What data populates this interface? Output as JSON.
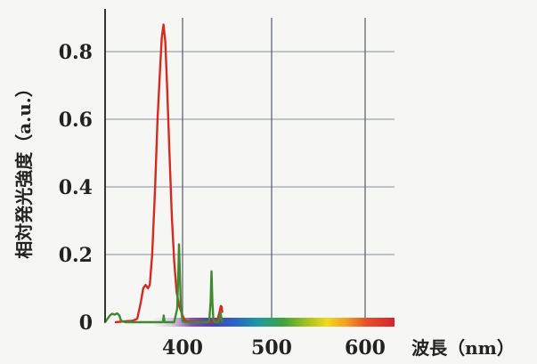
{
  "chart_data": {
    "type": "line",
    "xlabel": "波長（nm）",
    "ylabel": "相対発光強度（a.u.）",
    "xlim": [
      335,
      445
    ],
    "ylim": [
      0,
      0.9
    ],
    "grid": true,
    "x_ticks": [
      400,
      500,
      600
    ],
    "x_tick_labels": [
      "400",
      "500",
      "600"
    ],
    "y_ticks": [
      0,
      0.2,
      0.4,
      0.6,
      0.8
    ],
    "y_tick_labels": [
      "0",
      "0.2",
      "0.4",
      "0.6",
      "0.8"
    ],
    "spectrum_bar": true,
    "series": [
      {
        "color": "#d42a1f",
        "points": [
          [
            344,
            0.0
          ],
          [
            352,
            0.003
          ],
          [
            358,
            0.004
          ],
          [
            362,
            0.01
          ],
          [
            365,
            0.06
          ],
          [
            367,
            0.1
          ],
          [
            369,
            0.11
          ],
          [
            371,
            0.1
          ],
          [
            372.5,
            0.11
          ],
          [
            374.5,
            0.2
          ],
          [
            377,
            0.4
          ],
          [
            379,
            0.6
          ],
          [
            381,
            0.74
          ],
          [
            382.5,
            0.84
          ],
          [
            384,
            0.88
          ],
          [
            385.5,
            0.83
          ],
          [
            387,
            0.7
          ],
          [
            389,
            0.5
          ],
          [
            391,
            0.31
          ],
          [
            393,
            0.18
          ],
          [
            395,
            0.09
          ],
          [
            397,
            0.05
          ],
          [
            400,
            0.02
          ],
          [
            402,
            0.008
          ],
          [
            405,
            0.002
          ],
          [
            430,
            0.0
          ],
          [
            437,
            0.003
          ],
          [
            439.5,
            0.01
          ],
          [
            441.5,
            0.03
          ],
          [
            443,
            0.048
          ],
          [
            444,
            0.045
          ],
          [
            444.5,
            0.03
          ]
        ]
      },
      {
        "color": "#3f8a2f",
        "points": [
          [
            335,
            0.0
          ],
          [
            337,
            0.01
          ],
          [
            339,
            0.02
          ],
          [
            341,
            0.025
          ],
          [
            343,
            0.022
          ],
          [
            345,
            0.026
          ],
          [
            347,
            0.02
          ],
          [
            348,
            0.008
          ],
          [
            349.5,
            0.002
          ],
          [
            352,
            0.0
          ],
          [
            383.5,
            0.0
          ],
          [
            384.2,
            0.02
          ],
          [
            384.8,
            0.0
          ],
          [
            393,
            0.0
          ],
          [
            395.5,
            0.04
          ],
          [
            396.5,
            0.15
          ],
          [
            397,
            0.23
          ],
          [
            397.5,
            0.17
          ],
          [
            398.5,
            0.05
          ],
          [
            400,
            0.003
          ],
          [
            402,
            0.0
          ],
          [
            428,
            0.0
          ],
          [
            430,
            0.005
          ],
          [
            431.5,
            0.06
          ],
          [
            432.5,
            0.15
          ],
          [
            433.5,
            0.06
          ],
          [
            434.5,
            0.01
          ],
          [
            436,
            0.0
          ],
          [
            440,
            0.0
          ],
          [
            441.3,
            0.012
          ],
          [
            442.5,
            0.028
          ],
          [
            443.7,
            0.012
          ],
          [
            444.5,
            0.0
          ]
        ]
      }
    ]
  }
}
